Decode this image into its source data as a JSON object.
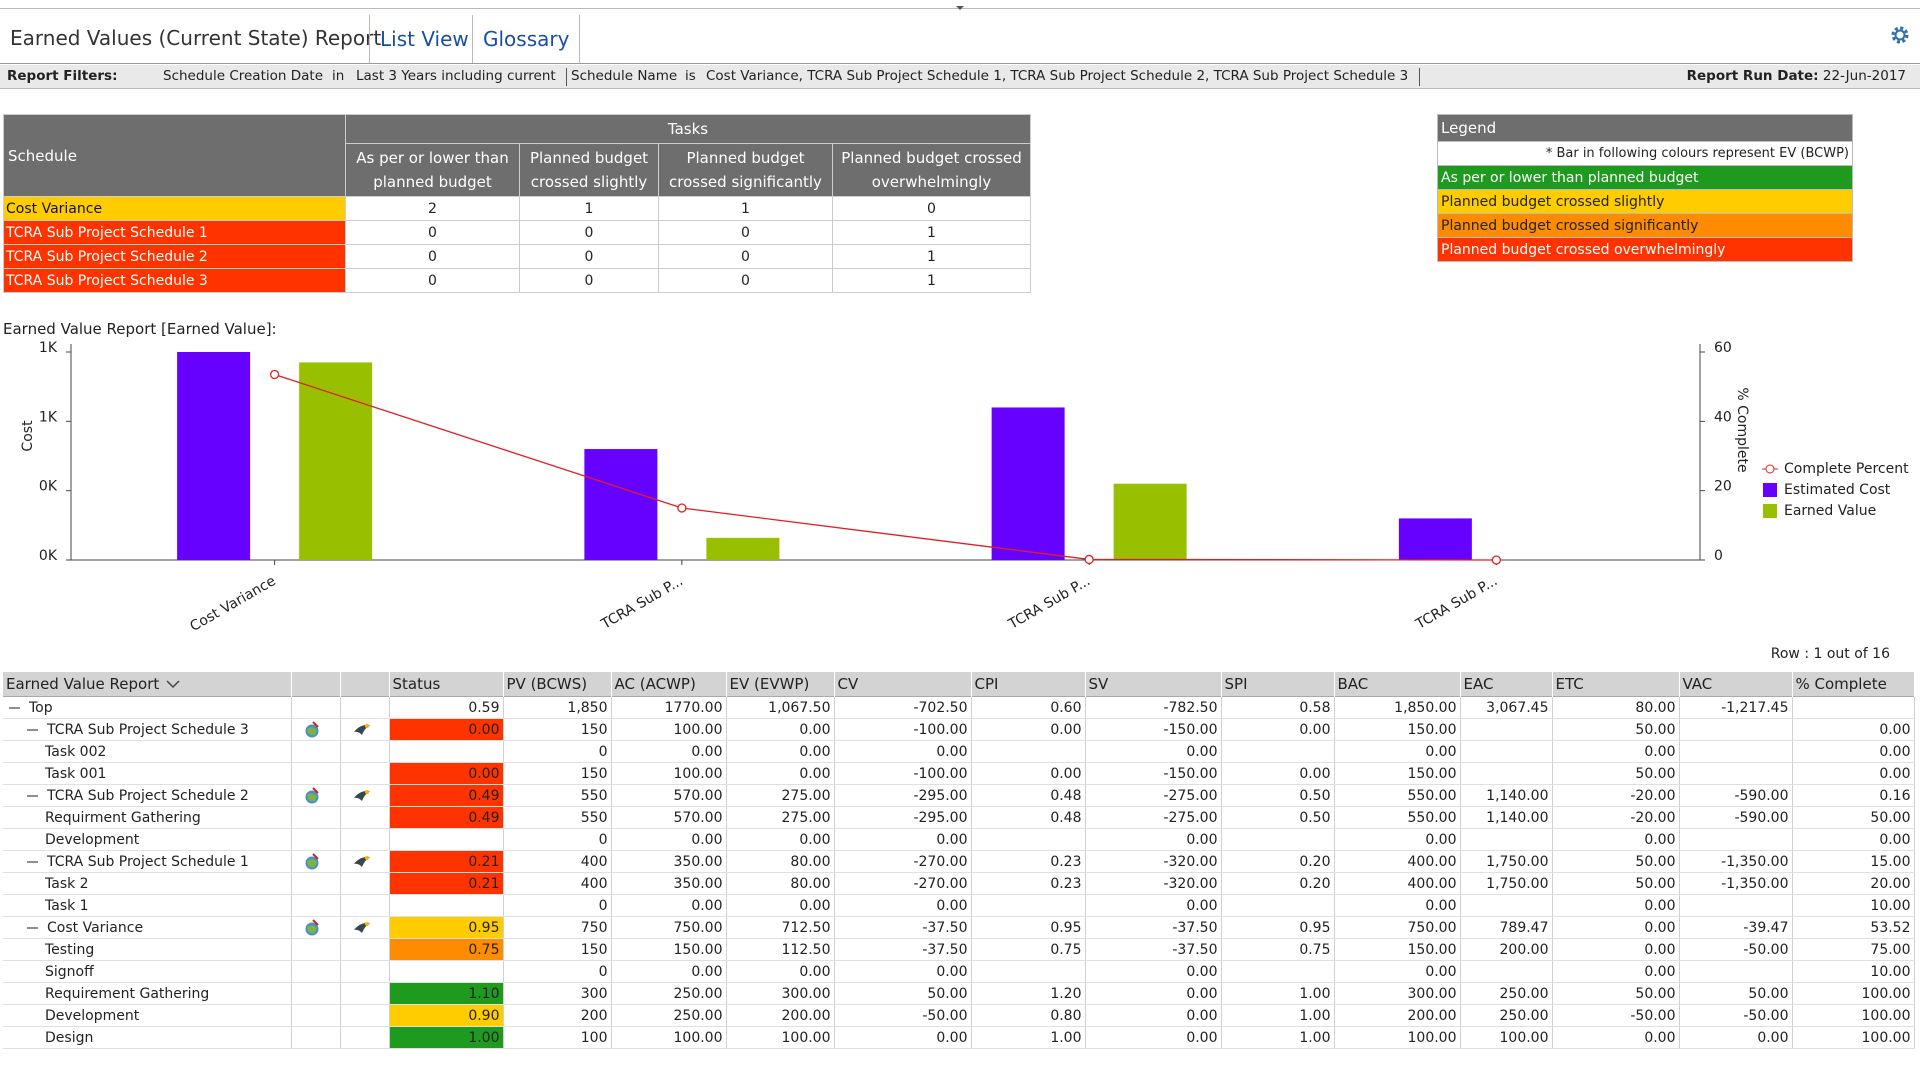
{
  "header": {
    "title": "Earned Values (Current State) Report",
    "tabs": [
      "List View",
      "Glossary"
    ]
  },
  "filters": {
    "label": "Report Filters:",
    "items": [
      {
        "field": "Schedule Creation Date",
        "operator": "in",
        "value": "Last 3 Years including current"
      },
      {
        "field": "Schedule Name",
        "operator": "is",
        "value": "Cost Variance, TCRA Sub Project Schedule 1, TCRA Sub Project Schedule 2, TCRA Sub Project Schedule 3"
      }
    ],
    "run_date_label": "Report Run Date:",
    "run_date": "22-Jun-2017"
  },
  "summary": {
    "schedule_header": "Schedule",
    "tasks_header": "Tasks",
    "columns": [
      "As per or lower than planned budget",
      "Planned budget crossed slightly",
      "Planned budget crossed significantly",
      "Planned budget crossed overwhelmingly"
    ],
    "rows": [
      {
        "name": "Cost Variance",
        "color": "#ffcc00",
        "counts": [
          "2",
          "1",
          "1",
          "0"
        ]
      },
      {
        "name": "TCRA Sub Project Schedule 1",
        "color": "#ff3300",
        "counts": [
          "0",
          "0",
          "0",
          "1"
        ]
      },
      {
        "name": "TCRA Sub Project Schedule 2",
        "color": "#ff3300",
        "counts": [
          "0",
          "0",
          "0",
          "1"
        ]
      },
      {
        "name": "TCRA Sub Project Schedule 3",
        "color": "#ff3300",
        "counts": [
          "0",
          "0",
          "0",
          "1"
        ]
      }
    ]
  },
  "legend": {
    "title": "Legend",
    "note": "* Bar in following colours represent EV (BCWP)",
    "items": [
      {
        "label": "As per or lower than planned budget",
        "color": "#1e9a1e"
      },
      {
        "label": "Planned budget crossed slightly",
        "color": "#ffcc00"
      },
      {
        "label": "Planned budget crossed significantly",
        "color": "#ff8c00"
      },
      {
        "label": "Planned budget crossed overwhelmingly",
        "color": "#ff3300"
      }
    ]
  },
  "chart_data": {
    "type": "bar",
    "title": "Earned Value Report [Earned Value]:",
    "y_label": "Cost",
    "y2_label": "% Complete",
    "categories": [
      "Cost Variance",
      "TCRA Sub P...",
      "TCRA Sub P...",
      "TCRA Sub P..."
    ],
    "series": [
      {
        "name": "Complete Percent",
        "type": "line",
        "axis": "y2",
        "color": "#e02020",
        "values": [
          53.52,
          15,
          0.16,
          0
        ]
      },
      {
        "name": "Estimated Cost",
        "color": "#6600ff",
        "values": [
          750,
          400,
          550,
          150
        ]
      },
      {
        "name": "Earned Value",
        "color": "#99c000",
        "values": [
          712.5,
          80,
          275,
          0
        ]
      }
    ],
    "ylim": [
      0,
      750
    ],
    "yticks": [
      {
        "value": 0,
        "label": "0K"
      },
      {
        "value": 250,
        "label": "0K"
      },
      {
        "value": 500,
        "label": "1K"
      },
      {
        "value": 750,
        "label": "1K"
      }
    ],
    "y2lim": [
      0,
      60
    ],
    "y2ticks": [
      0,
      20,
      40,
      60
    ],
    "grid": false,
    "legend": "right"
  },
  "report": {
    "row_count": "Row : 1 out of 16",
    "title": "Earned Value Report",
    "columns": [
      "Status",
      "PV (BCWS)",
      "AC (ACWP)",
      "EV (EVWP)",
      "CV",
      "CPI",
      "SV",
      "SPI",
      "BAC",
      "EAC",
      "ETC",
      "VAC",
      "% Complete"
    ],
    "top": {
      "name": "Top",
      "cells": [
        "0.59",
        "1,850",
        "1770.00",
        "1,067.50",
        "-702.50",
        "0.60",
        "-782.50",
        "0.58",
        "1,850.00",
        "3,067.45",
        "80.00",
        "-1,217.45",
        null
      ],
      "children": [
        {
          "name": "TCRA Sub Project Schedule 3",
          "status_color": "#ff3300",
          "cells": [
            "0.00",
            "150",
            "100.00",
            "0.00",
            "-100.00",
            "0.00",
            "-150.00",
            "0.00",
            "150.00",
            null,
            "50.00",
            null,
            "0.00"
          ],
          "children": [
            {
              "name": "Task 002",
              "cells": [
                null,
                "0",
                "0.00",
                "0.00",
                "0.00",
                null,
                "0.00",
                null,
                "0.00",
                null,
                "0.00",
                null,
                "0.00"
              ]
            },
            {
              "name": "Task 001",
              "status_color": "#ff3300",
              "cells": [
                "0.00",
                "150",
                "100.00",
                "0.00",
                "-100.00",
                "0.00",
                "-150.00",
                "0.00",
                "150.00",
                null,
                "50.00",
                null,
                "0.00"
              ]
            }
          ]
        },
        {
          "name": "TCRA Sub Project Schedule 2",
          "status_color": "#ff3300",
          "cells": [
            "0.49",
            "550",
            "570.00",
            "275.00",
            "-295.00",
            "0.48",
            "-275.00",
            "0.50",
            "550.00",
            "1,140.00",
            "-20.00",
            "-590.00",
            "0.16"
          ],
          "children": [
            {
              "name": "Requirment Gathering",
              "status_color": "#ff3300",
              "cells": [
                "0.49",
                "550",
                "570.00",
                "275.00",
                "-295.00",
                "0.48",
                "-275.00",
                "0.50",
                "550.00",
                "1,140.00",
                "-20.00",
                "-590.00",
                "50.00"
              ]
            },
            {
              "name": "Development",
              "cells": [
                null,
                "0",
                "0.00",
                "0.00",
                "0.00",
                null,
                "0.00",
                null,
                "0.00",
                null,
                "0.00",
                null,
                "0.00"
              ]
            }
          ]
        },
        {
          "name": "TCRA Sub Project Schedule 1",
          "status_color": "#ff3300",
          "cells": [
            "0.21",
            "400",
            "350.00",
            "80.00",
            "-270.00",
            "0.23",
            "-320.00",
            "0.20",
            "400.00",
            "1,750.00",
            "50.00",
            "-1,350.00",
            "15.00"
          ],
          "children": [
            {
              "name": "Task 2",
              "status_color": "#ff3300",
              "cells": [
                "0.21",
                "400",
                "350.00",
                "80.00",
                "-270.00",
                "0.23",
                "-320.00",
                "0.20",
                "400.00",
                "1,750.00",
                "50.00",
                "-1,350.00",
                "20.00"
              ]
            },
            {
              "name": "Task 1",
              "cells": [
                null,
                "0",
                "0.00",
                "0.00",
                "0.00",
                null,
                "0.00",
                null,
                "0.00",
                null,
                "0.00",
                null,
                "10.00"
              ]
            }
          ]
        },
        {
          "name": "Cost Variance",
          "status_color": "#ffcc00",
          "cells": [
            "0.95",
            "750",
            "750.00",
            "712.50",
            "-37.50",
            "0.95",
            "-37.50",
            "0.95",
            "750.00",
            "789.47",
            "0.00",
            "-39.47",
            "53.52"
          ],
          "children": [
            {
              "name": "Testing",
              "status_color": "#ff8c00",
              "cells": [
                "0.75",
                "150",
                "150.00",
                "112.50",
                "-37.50",
                "0.75",
                "-37.50",
                "0.75",
                "150.00",
                "200.00",
                "0.00",
                "-50.00",
                "75.00"
              ]
            },
            {
              "name": "Signoff",
              "cells": [
                null,
                "0",
                "0.00",
                "0.00",
                "0.00",
                null,
                "0.00",
                null,
                "0.00",
                null,
                "0.00",
                null,
                "10.00"
              ]
            },
            {
              "name": "Requirement Gathering",
              "status_color": "#1e9a1e",
              "cells": [
                "1.10",
                "300",
                "250.00",
                "300.00",
                "50.00",
                "1.20",
                "0.00",
                "1.00",
                "300.00",
                "250.00",
                "50.00",
                "50.00",
                "100.00"
              ]
            },
            {
              "name": "Development",
              "status_color": "#ffcc00",
              "cells": [
                "0.90",
                "200",
                "250.00",
                "200.00",
                "-50.00",
                "0.80",
                "0.00",
                "1.00",
                "200.00",
                "250.00",
                "-50.00",
                "-50.00",
                "100.00"
              ]
            },
            {
              "name": "Design",
              "status_color": "#1e9a1e",
              "cells": [
                "1.00",
                "100",
                "100.00",
                "100.00",
                "0.00",
                "1.00",
                "0.00",
                "1.00",
                "100.00",
                "100.00",
                "0.00",
                "0.00",
                "100.00"
              ]
            }
          ]
        }
      ]
    }
  }
}
